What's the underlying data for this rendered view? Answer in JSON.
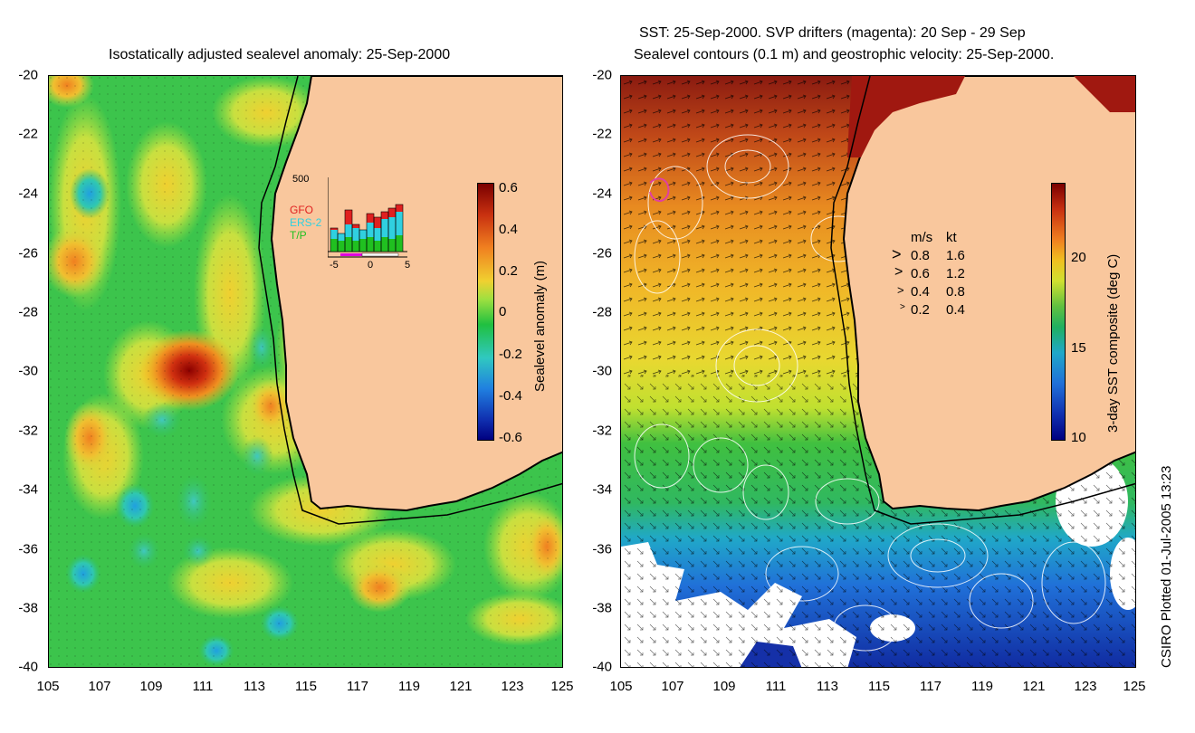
{
  "left_panel": {
    "title": "Isostatically adjusted sealevel anomaly: 25-Sep-2000",
    "colorbar": {
      "label": "Sealevel anomaly (m)",
      "ticks": [
        "0.6",
        "0.4",
        "0.2",
        "0",
        "-0.2",
        "-0.4",
        "-0.6"
      ]
    },
    "inset": {
      "ymax_label": "500",
      "x_ticks": [
        "-5",
        "0",
        "5"
      ],
      "legend": [
        {
          "name": "GFO",
          "color": "#e02020"
        },
        {
          "name": "ERS-2",
          "color": "#30d0e0"
        },
        {
          "name": "T/P",
          "color": "#20c020"
        }
      ]
    }
  },
  "right_panel": {
    "title_line1": "SST: 25-Sep-2000. SVP drifters (magenta): 20 Sep - 29 Sep",
    "title_line2": "Sealevel contours (0.1 m) and geostrophic velocity: 25-Sep-2000.",
    "colorbar": {
      "label": "3-day SST composite (deg C)",
      "ticks": [
        "20",
        "15",
        "10"
      ]
    },
    "speed_legend": {
      "header_ms": "m/s",
      "header_kt": "kt",
      "rows": [
        {
          "ms": "0.8",
          "kt": "1.6"
        },
        {
          "ms": "0.6",
          "kt": "1.2"
        },
        {
          "ms": "0.4",
          "kt": "0.8"
        },
        {
          "ms": "0.2",
          "kt": "0.4"
        }
      ]
    }
  },
  "axes": {
    "lat_ticks": [
      "-20",
      "-22",
      "-24",
      "-26",
      "-28",
      "-30",
      "-32",
      "-34",
      "-36",
      "-38",
      "-40"
    ],
    "lon_ticks": [
      "105",
      "107",
      "109",
      "111",
      "113",
      "115",
      "117",
      "119",
      "121",
      "123",
      "125"
    ]
  },
  "footer": {
    "credit": "CSIRO Plotted 01-Jul-2005 13:23"
  },
  "colors": {
    "land": "#f9c79d",
    "coast": "#000000"
  }
}
